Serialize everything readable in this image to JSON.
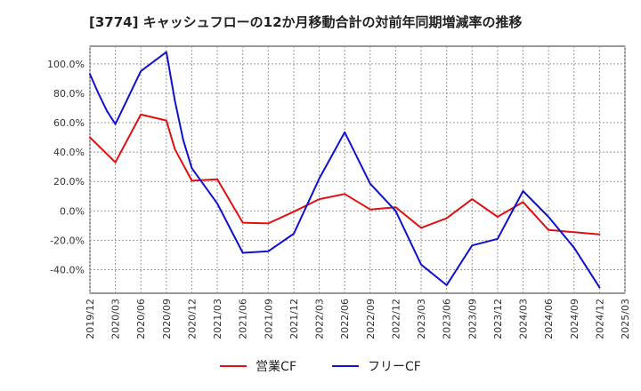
{
  "chart_data": {
    "type": "line",
    "title": "[3774]  キャッシュフローの12か月移動合計の対前年同期増減率の推移",
    "xlabel": "",
    "ylabel": "",
    "x_ticks": [
      "2019/12",
      "2020/03",
      "2020/06",
      "2020/09",
      "2020/12",
      "2021/03",
      "2021/06",
      "2021/09",
      "2021/12",
      "2022/03",
      "2022/06",
      "2022/09",
      "2022/12",
      "2023/03",
      "2023/06",
      "2023/09",
      "2023/12",
      "2024/03",
      "2024/06",
      "2024/09",
      "2024/12",
      "2025/03"
    ],
    "y_ticks": [
      "100.0%",
      "80.0%",
      "60.0%",
      "40.0%",
      "20.0%",
      "0.0%",
      "-20.0%",
      "-40.0%"
    ],
    "ylim": [
      -56,
      112
    ],
    "grid": true,
    "legend_position": "bottom",
    "series": [
      {
        "name": "営業CF",
        "color": "#dd1111",
        "x": [
          "2019/12",
          "2020/03",
          "2020/06",
          "2020/09",
          "2020/10",
          "2020/12",
          "2021/03",
          "2021/06",
          "2021/09",
          "2021/12",
          "2022/03",
          "2022/06",
          "2022/09",
          "2022/12",
          "2023/03",
          "2023/06",
          "2023/09",
          "2023/12",
          "2024/03",
          "2024/06",
          "2024/09",
          "2024/12"
        ],
        "values": [
          50,
          33,
          65.5,
          61.5,
          42,
          20.5,
          21.5,
          -8,
          -8.5,
          -0.5,
          8,
          11.5,
          1,
          2.5,
          -11.5,
          -5,
          8,
          -4,
          6,
          -13,
          -14.5,
          -16
        ]
      },
      {
        "name": "フリーCF",
        "color": "#1111cc",
        "x": [
          "2019/12",
          "2020/01",
          "2020/02",
          "2020/03",
          "2020/06",
          "2020/09",
          "2020/10",
          "2020/11",
          "2020/12",
          "2021/03",
          "2021/06",
          "2021/09",
          "2021/12",
          "2022/03",
          "2022/06",
          "2022/09",
          "2022/12",
          "2023/03",
          "2023/06",
          "2023/09",
          "2023/12",
          "2024/03",
          "2024/06",
          "2024/09",
          "2024/12"
        ],
        "values": [
          93,
          80,
          68,
          59,
          95,
          108,
          75,
          48,
          29,
          5,
          -28.5,
          -27.5,
          -15.5,
          22,
          53.5,
          18.5,
          0,
          -36.5,
          -50.5,
          -23.5,
          -19,
          13.5,
          -4,
          -25,
          -52
        ]
      }
    ]
  }
}
